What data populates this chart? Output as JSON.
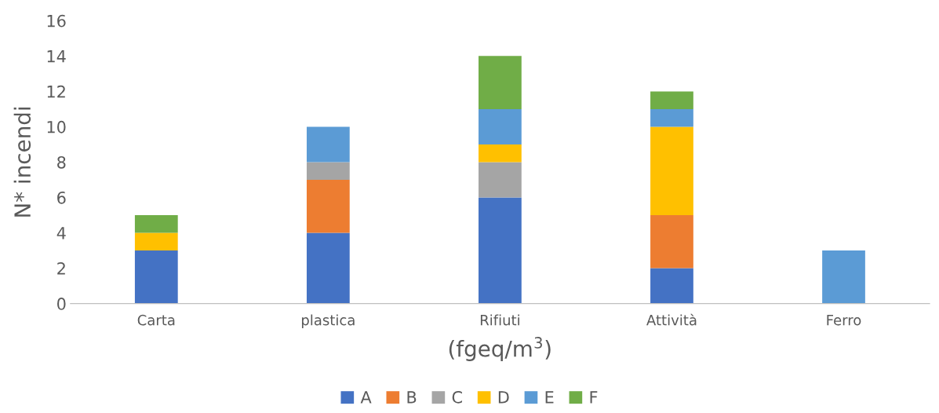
{
  "chart_data": {
    "type": "bar",
    "stacked": true,
    "categories": [
      "Carta",
      "plastica",
      "Rifiuti",
      "Attività",
      "Ferro"
    ],
    "series": [
      {
        "name": "A",
        "color": "#4472c4",
        "values": [
          3,
          4,
          6,
          2,
          0
        ]
      },
      {
        "name": "B",
        "color": "#ed7d31",
        "values": [
          0,
          3,
          0,
          3,
          0
        ]
      },
      {
        "name": "C",
        "color": "#a5a5a5",
        "values": [
          0,
          1,
          2,
          0,
          0
        ]
      },
      {
        "name": "D",
        "color": "#ffc000",
        "values": [
          1,
          0,
          1,
          5,
          0
        ]
      },
      {
        "name": "E",
        "color": "#5b9bd5",
        "values": [
          0,
          2,
          2,
          1,
          3
        ]
      },
      {
        "name": "F",
        "color": "#70ad47",
        "values": [
          1,
          0,
          3,
          1,
          0
        ]
      }
    ],
    "xlabel": "(fgeq/m$^{3}$)",
    "ylabel": "N* incendi",
    "ylim": [
      0,
      16
    ],
    "yticks": [
      0,
      2,
      4,
      6,
      8,
      10,
      12,
      14,
      16
    ],
    "grid": false,
    "legend": "bottom"
  }
}
